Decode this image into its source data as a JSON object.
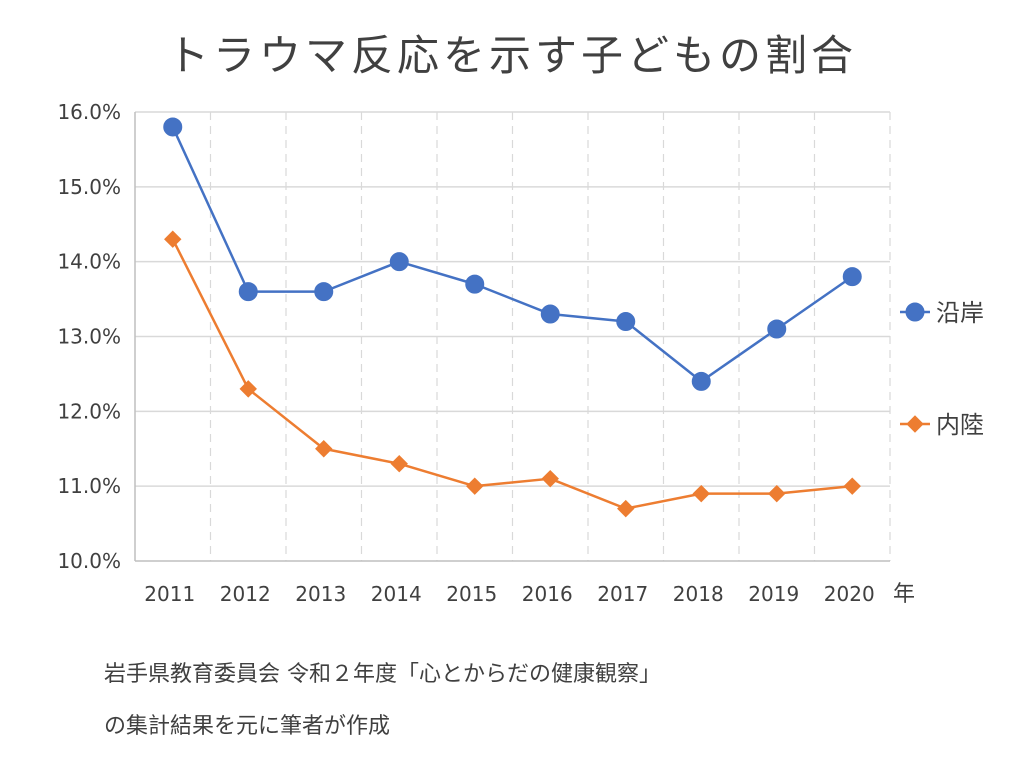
{
  "chart_data": {
    "type": "line",
    "title": "トラウマ反応を示す子どもの割合",
    "x_unit_label": "年",
    "categories": [
      "2011",
      "2012",
      "2013",
      "2014",
      "2015",
      "2016",
      "2017",
      "2018",
      "2019",
      "2020"
    ],
    "y_ticks": [
      "10.0%",
      "11.0%",
      "12.0%",
      "13.0%",
      "14.0%",
      "15.0%",
      "16.0%"
    ],
    "ylim": [
      10.0,
      16.0
    ],
    "y_unit": "%",
    "grid": {
      "horizontal": "solid",
      "vertical": "dashed"
    },
    "legend_position": "right",
    "series": [
      {
        "name": "沿岸",
        "color": "#4472C4",
        "marker": "circle",
        "values": [
          15.8,
          13.6,
          13.6,
          14.0,
          13.7,
          13.3,
          13.2,
          12.4,
          13.1,
          13.8
        ]
      },
      {
        "name": "内陸",
        "color": "#ED7D31",
        "marker": "diamond",
        "values": [
          14.3,
          12.3,
          11.5,
          11.3,
          11.0,
          11.1,
          10.7,
          10.9,
          10.9,
          11.0
        ]
      }
    ]
  },
  "source_note": {
    "line1": "岩手県教育委員会 令和２年度「心とからだの健康観察」",
    "line2": "の集計結果を元に筆者が作成"
  }
}
